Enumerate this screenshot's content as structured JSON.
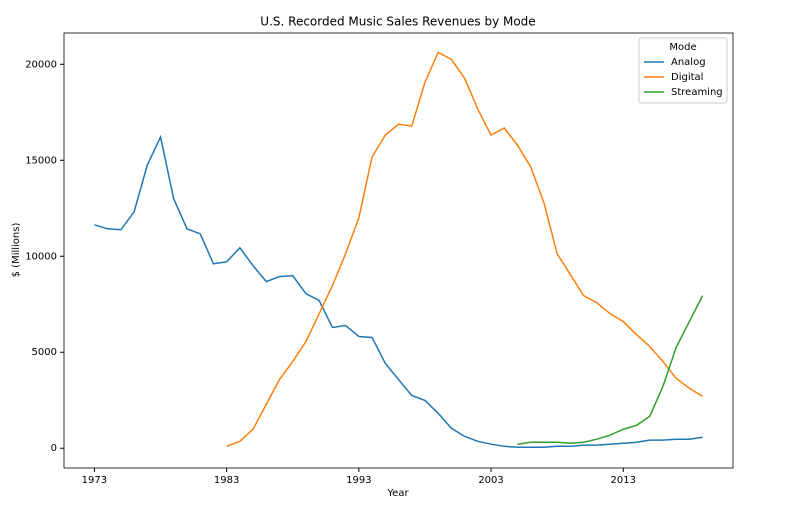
{
  "chart_data": {
    "type": "line",
    "title": "U.S. Recorded Music Sales Revenues by Mode",
    "x_label": "Year",
    "y_label": "$ (Millions)",
    "x": [
      1973,
      1974,
      1975,
      1976,
      1977,
      1978,
      1979,
      1980,
      1981,
      1982,
      1983,
      1984,
      1985,
      1986,
      1987,
      1988,
      1989,
      1990,
      1991,
      1992,
      1993,
      1994,
      1995,
      1996,
      1997,
      1998,
      1999,
      2000,
      2001,
      2002,
      2003,
      2004,
      2005,
      2006,
      2007,
      2008,
      2009,
      2010,
      2011,
      2012,
      2013,
      2014,
      2015,
      2016,
      2017,
      2018,
      2019
    ],
    "series": [
      {
        "name": "Analog",
        "color": "#1f77b4",
        "values": [
          11640,
          11430,
          11380,
          12310,
          14750,
          16210,
          12990,
          11430,
          11170,
          9610,
          9710,
          10440,
          9510,
          8680,
          8940,
          8990,
          8050,
          7690,
          6290,
          6390,
          5820,
          5770,
          4420,
          3580,
          2750,
          2490,
          1820,
          1040,
          620,
          360,
          210,
          100,
          50,
          50,
          50,
          100,
          100,
          160,
          160,
          210,
          260,
          310,
          420,
          420,
          470,
          470,
          570
        ]
      },
      {
        "name": "Digital",
        "color": "#ff7f0e",
        "values": [
          null,
          null,
          null,
          null,
          null,
          null,
          null,
          null,
          null,
          null,
          100,
          360,
          990,
          2290,
          3580,
          4520,
          5560,
          7010,
          8470,
          10130,
          12000,
          15170,
          16310,
          16880,
          16780,
          19060,
          20620,
          20260,
          19270,
          17660,
          16310,
          16680,
          15790,
          14650,
          12780,
          10130,
          9040,
          7950,
          7580,
          7010,
          6600,
          5920,
          5300,
          4520,
          3640,
          3120,
          2700
        ]
      },
      {
        "name": "Streaming",
        "color": "#2ca02c",
        "values": [
          null,
          null,
          null,
          null,
          null,
          null,
          null,
          null,
          null,
          null,
          null,
          null,
          null,
          null,
          null,
          null,
          null,
          null,
          null,
          null,
          null,
          null,
          null,
          null,
          null,
          null,
          null,
          null,
          null,
          null,
          null,
          null,
          210,
          310,
          310,
          310,
          260,
          310,
          470,
          680,
          990,
          1190,
          1660,
          3220,
          5250,
          6600,
          7950
        ]
      }
    ],
    "legend_title": "Mode",
    "legend_loc": "upper right",
    "xlim": [
      1970.7,
      2021.3
    ],
    "xticks": [
      1973,
      1983,
      1993,
      2003,
      2013
    ],
    "ylim": [
      -1030,
      21630
    ],
    "yticks": [
      0,
      5000,
      10000,
      15000,
      20000
    ]
  }
}
